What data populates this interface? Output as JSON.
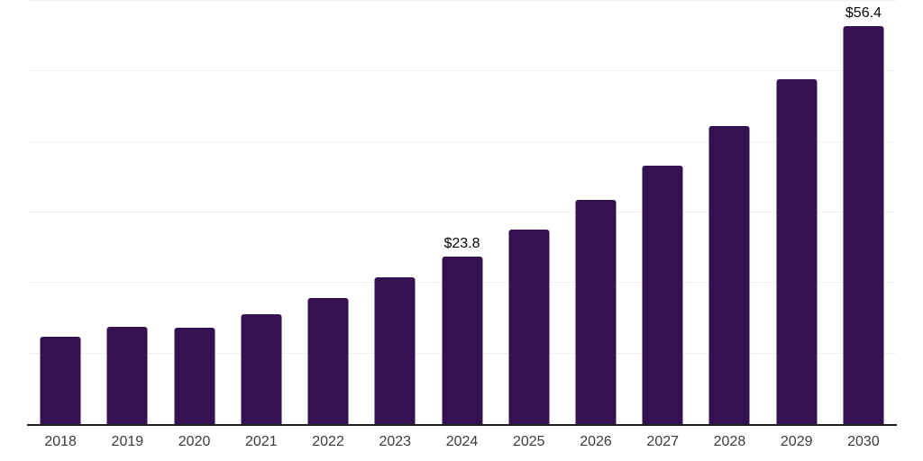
{
  "chart_data": {
    "type": "bar",
    "title": "",
    "xlabel": "",
    "ylabel": "",
    "categories": [
      "2018",
      "2019",
      "2020",
      "2021",
      "2022",
      "2023",
      "2024",
      "2025",
      "2026",
      "2027",
      "2028",
      "2029",
      "2030"
    ],
    "values": [
      12.4,
      13.8,
      13.6,
      15.6,
      17.9,
      20.8,
      23.8,
      27.6,
      31.8,
      36.6,
      42.3,
      48.9,
      56.4
    ],
    "data_labels": {
      "2024": "$23.8",
      "2030": "$56.4"
    },
    "ylim": [
      0,
      60
    ],
    "grid": "horizontal",
    "grid_interval": 10,
    "legend": "none",
    "y_axis_tick_labels": "none",
    "colors": {
      "bar": "#341151",
      "axis_line": "#1f1f1f",
      "gridline": "#f1f1f1",
      "x_tick_label": "#3c3c3c",
      "data_label": "#050505",
      "background": "#ffffff"
    }
  }
}
